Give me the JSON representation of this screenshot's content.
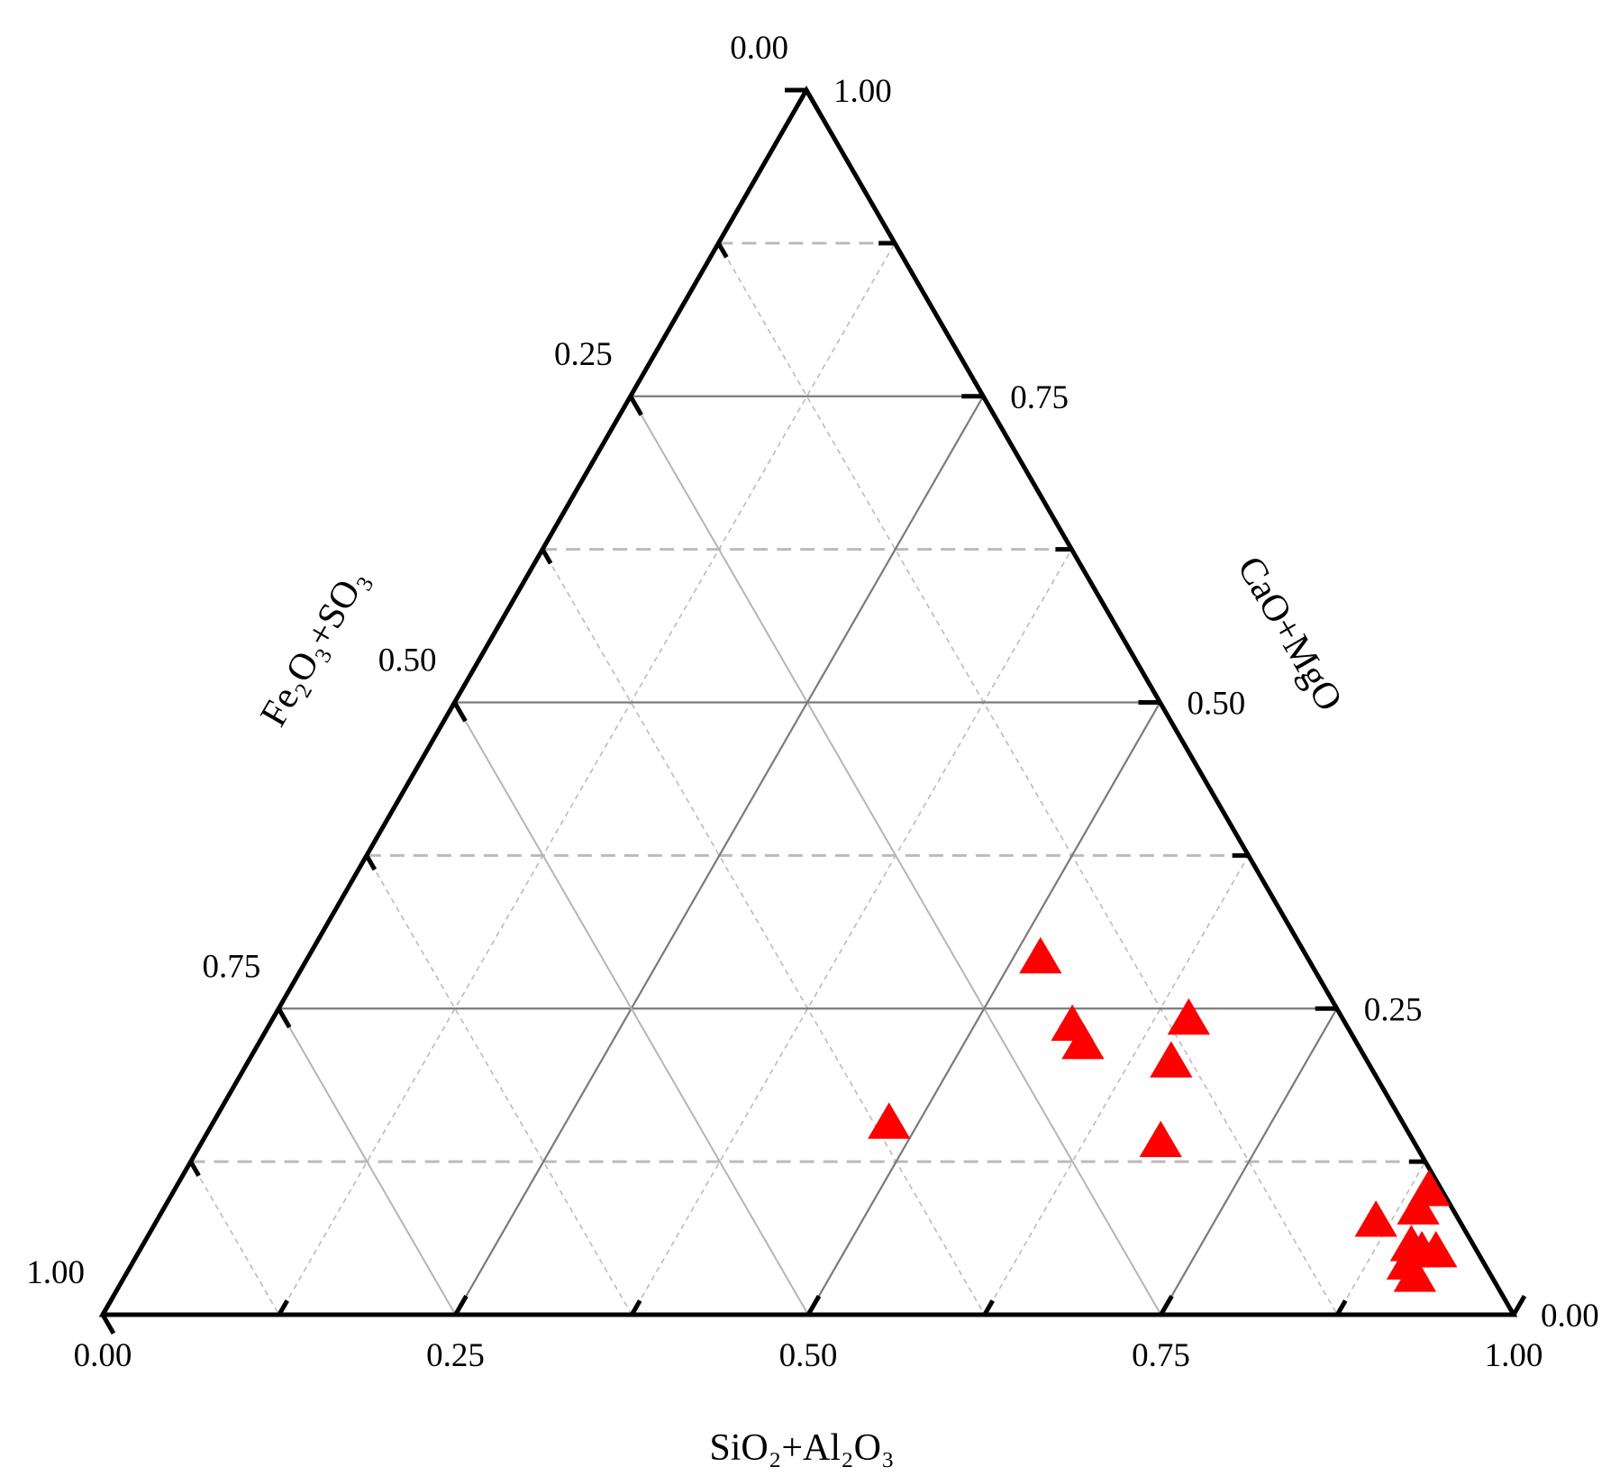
{
  "chart_data": {
    "type": "scatter",
    "subtype": "ternary",
    "grid": true,
    "axes": {
      "bottom": {
        "label": "SiO₂+Al₂O₃",
        "ticks": [
          "0.00",
          "0.25",
          "0.50",
          "0.75",
          "1.00"
        ]
      },
      "right": {
        "label": "CaO+MgO",
        "ticks": [
          "0.00",
          "0.25",
          "0.50",
          "0.75",
          "1.00"
        ]
      },
      "left": {
        "label": "Fe₂O₃+SO₃",
        "ticks": [
          "0.00",
          "0.25",
          "0.50",
          "0.75",
          "1.00"
        ]
      }
    },
    "series": [
      {
        "color": "#ff0000",
        "marker": "triangle",
        "points": [
          {
            "sio2_al2o3": 0.52,
            "cao_mgo": 0.29,
            "fe2o3_so3": 0.19
          },
          {
            "sio2_al2o3": 0.57,
            "cao_mgo": 0.235,
            "fe2o3_so3": 0.195
          },
          {
            "sio2_al2o3": 0.585,
            "cao_mgo": 0.22,
            "fe2o3_so3": 0.195
          },
          {
            "sio2_al2o3": 0.655,
            "cao_mgo": 0.205,
            "fe2o3_so3": 0.14
          },
          {
            "sio2_al2o3": 0.65,
            "cao_mgo": 0.24,
            "fe2o3_so3": 0.11
          },
          {
            "sio2_al2o3": 0.48,
            "cao_mgo": 0.155,
            "fe2o3_so3": 0.365
          },
          {
            "sio2_al2o3": 0.68,
            "cao_mgo": 0.14,
            "fe2o3_so3": 0.18
          },
          {
            "sio2_al2o3": 0.89,
            "cao_mgo": 0.1,
            "fe2o3_so3": 0.01
          },
          {
            "sio2_al2o3": 0.89,
            "cao_mgo": 0.085,
            "fe2o3_so3": 0.025
          },
          {
            "sio2_al2o3": 0.865,
            "cao_mgo": 0.075,
            "fe2o3_so3": 0.06
          },
          {
            "sio2_al2o3": 0.9,
            "cao_mgo": 0.055,
            "fe2o3_so3": 0.045
          },
          {
            "sio2_al2o3": 0.91,
            "cao_mgo": 0.05,
            "fe2o3_so3": 0.04
          },
          {
            "sio2_al2o3": 0.92,
            "cao_mgo": 0.05,
            "fe2o3_so3": 0.03
          },
          {
            "sio2_al2o3": 0.905,
            "cao_mgo": 0.04,
            "fe2o3_so3": 0.055
          },
          {
            "sio2_al2o3": 0.915,
            "cao_mgo": 0.03,
            "fe2o3_so3": 0.055
          }
        ]
      }
    ]
  }
}
